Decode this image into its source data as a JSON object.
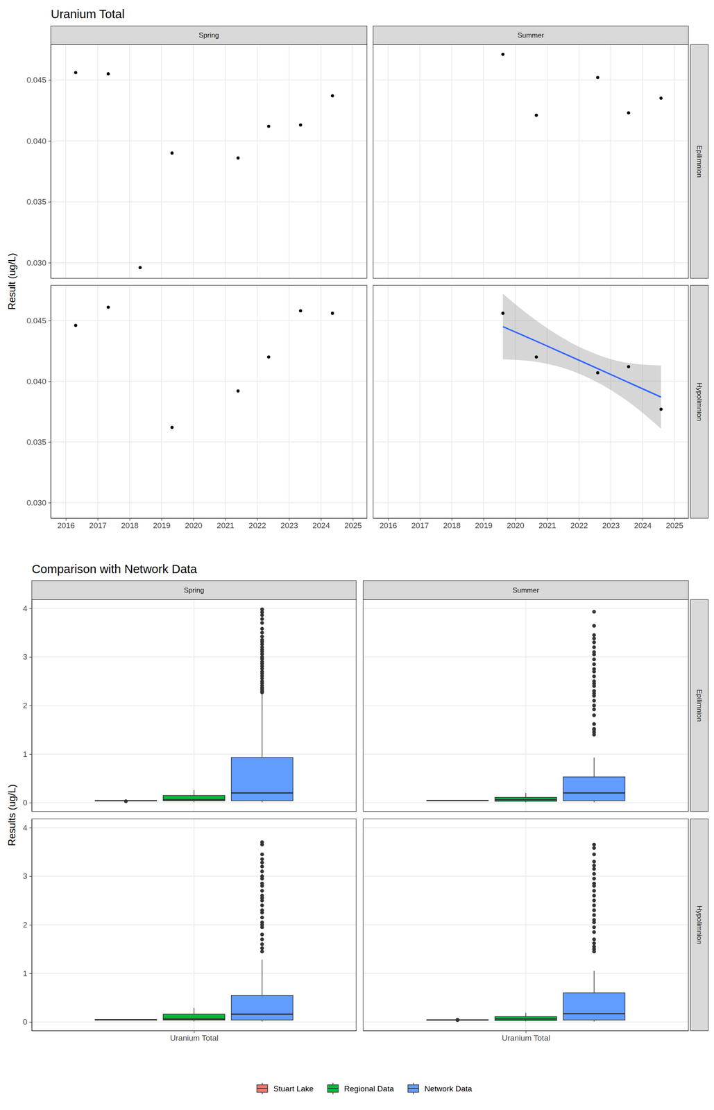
{
  "chart_data": [
    {
      "type": "scatter",
      "title": "Uranium Total",
      "y_label": "Result (ug/L)",
      "color": "#000000",
      "marker": "circle",
      "grid": true,
      "columns": [
        "Spring",
        "Summer"
      ],
      "xlim": [
        2015.53,
        2025.44
      ],
      "xticks": [
        2016,
        2017,
        2018,
        2019,
        2020,
        2021,
        2022,
        2023,
        2024,
        2025
      ],
      "ylim": [
        0.02872,
        0.0479
      ],
      "yticks": [
        {
          "value": 0.03,
          "label": "0.030"
        },
        {
          "value": 0.035,
          "label": "0.035"
        },
        {
          "value": 0.04,
          "label": "0.040"
        },
        {
          "value": 0.045,
          "label": "0.045"
        }
      ],
      "rows": [
        {
          "name": "Epilimnion",
          "panels": [
            {
              "x": [
                2016.31,
                2017.33,
                2018.33,
                2019.33,
                2021.4,
                2022.36,
                2023.36,
                2024.36
              ],
              "values": [
                0.0456,
                0.0455,
                0.0296,
                0.039,
                0.0386,
                0.0412,
                0.0413,
                0.0437
              ]
            },
            {
              "x": [
                2019.61,
                2020.66,
                2022.59,
                2023.56,
                2024.58
              ],
              "values": [
                0.0471,
                0.0421,
                0.0452,
                0.0423,
                0.0435
              ]
            }
          ]
        },
        {
          "name": "Hypolimnion",
          "panels": [
            {
              "x": [
                2016.31,
                2017.33,
                2019.33,
                2021.4,
                2022.36,
                2023.36,
                2024.36
              ],
              "values": [
                0.0446,
                0.0461,
                0.0362,
                0.0392,
                0.042,
                0.0458,
                0.0456
              ]
            },
            {
              "x": [
                2019.61,
                2020.66,
                2022.59,
                2023.56,
                2024.58
              ],
              "values": [
                0.0456,
                0.042,
                0.0407,
                0.0412,
                0.0377
              ],
              "trend": {
                "color": "#3366FF",
                "x": [
                  2019.61,
                  2020.66,
                  2022.2,
                  2023.56,
                  2024.58
                ],
                "values": [
                  0.0445,
                  0.0433,
                  0.0415,
                  0.0399,
                  0.0387
                ],
                "lower": [
                  0.0418,
                  0.0416,
                  0.0404,
                  0.0383,
                  0.0361
                ],
                "upper": [
                  0.0472,
                  0.045,
                  0.0426,
                  0.0415,
                  0.0413
                ]
              }
            }
          ]
        }
      ]
    },
    {
      "type": "box",
      "title": "Comparison with Network Data",
      "y_label": "Results (ug/L)",
      "grid": true,
      "legend": "bottom",
      "categories": [
        "Uranium Total"
      ],
      "columns": [
        "Spring",
        "Summer"
      ],
      "ylim": [
        -0.18,
        4.18
      ],
      "yticks": [
        0,
        1,
        2,
        3,
        4
      ],
      "series": [
        {
          "name": "Stuart Lake",
          "color": "#F8766D"
        },
        {
          "name": "Regional Data",
          "color": "#00BA38"
        },
        {
          "name": "Network Data",
          "color": "#619CFF"
        }
      ],
      "rows": [
        {
          "name": "Epilimnion",
          "panels": [
            {
              "boxes": [
                {
                  "min": 0.0386,
                  "q1": 0.0389,
                  "median": 0.04125,
                  "q3": 0.04415,
                  "max": 0.0456,
                  "outliers": [
                    0.0296
                  ]
                },
                {
                  "min": 0.01,
                  "q1": 0.04,
                  "median": 0.06,
                  "q3": 0.15,
                  "max": 0.26,
                  "outliers": []
                },
                {
                  "min": 0.01,
                  "q1": 0.04,
                  "median": 0.2,
                  "q3": 0.93,
                  "max": 2.25,
                  "outliers": [
                    2.27,
                    2.3,
                    2.34,
                    2.37,
                    2.41,
                    2.46,
                    2.5,
                    2.56,
                    2.61,
                    2.66,
                    2.7,
                    2.76,
                    2.81,
                    2.86,
                    2.9,
                    2.96,
                    3.0,
                    3.06,
                    3.11,
                    3.15,
                    3.2,
                    3.26,
                    3.31,
                    3.35,
                    3.42,
                    3.5,
                    3.58,
                    3.7,
                    3.78,
                    3.86,
                    3.92,
                    3.98
                  ]
                }
              ]
            },
            {
              "boxes": [
                {
                  "min": 0.0421,
                  "q1": 0.0423,
                  "median": 0.0435,
                  "q3": 0.0452,
                  "max": 0.0471,
                  "outliers": []
                },
                {
                  "min": 0.01,
                  "q1": 0.03,
                  "median": 0.06,
                  "q3": 0.11,
                  "max": 0.2,
                  "outliers": []
                },
                {
                  "min": 0.01,
                  "q1": 0.04,
                  "median": 0.2,
                  "q3": 0.53,
                  "max": 0.93,
                  "outliers": [
                    1.4,
                    1.45,
                    1.5,
                    1.52,
                    1.62,
                    1.8,
                    1.92,
                    2.0,
                    2.1,
                    2.2,
                    2.25,
                    2.3,
                    2.4,
                    2.45,
                    2.5,
                    2.6,
                    2.7,
                    2.75,
                    2.85,
                    2.95,
                    3.05,
                    3.1,
                    3.2,
                    3.3,
                    3.38,
                    3.45,
                    3.64,
                    3.93
                  ]
                }
              ]
            }
          ]
        },
        {
          "name": "Hypolimnion",
          "panels": [
            {
              "boxes": [
                {
                  "min": 0.0362,
                  "q1": 0.0406,
                  "median": 0.0446,
                  "q3": 0.0457,
                  "max": 0.0461,
                  "outliers": []
                },
                {
                  "min": 0.01,
                  "q1": 0.04,
                  "median": 0.06,
                  "q3": 0.16,
                  "max": 0.29,
                  "outliers": []
                },
                {
                  "min": 0.01,
                  "q1": 0.04,
                  "median": 0.16,
                  "q3": 0.55,
                  "max": 1.28,
                  "outliers": [
                    1.45,
                    1.52,
                    1.6,
                    1.7,
                    1.8,
                    1.95,
                    2.0,
                    2.05,
                    2.15,
                    2.25,
                    2.3,
                    2.4,
                    2.5,
                    2.55,
                    2.6,
                    2.7,
                    2.8,
                    2.85,
                    2.95,
                    3.0,
                    3.1,
                    3.2,
                    3.28,
                    3.35,
                    3.45,
                    3.65,
                    3.7
                  ]
                }
              ]
            },
            {
              "boxes": [
                {
                  "min": 0.0407,
                  "q1": 0.0407,
                  "median": 0.0412,
                  "q3": 0.042,
                  "max": 0.042,
                  "outliers": [
                    0.0377,
                    0.0456
                  ]
                },
                {
                  "min": 0.01,
                  "q1": 0.03,
                  "median": 0.06,
                  "q3": 0.11,
                  "max": 0.19,
                  "outliers": []
                },
                {
                  "min": 0.01,
                  "q1": 0.04,
                  "median": 0.17,
                  "q3": 0.6,
                  "max": 1.05,
                  "outliers": [
                    1.45,
                    1.5,
                    1.55,
                    1.62,
                    1.7,
                    1.85,
                    1.95,
                    2.05,
                    2.1,
                    2.2,
                    2.3,
                    2.4,
                    2.5,
                    2.6,
                    2.7,
                    2.8,
                    2.85,
                    2.95,
                    3.05,
                    3.15,
                    3.22,
                    3.3,
                    3.45,
                    3.58,
                    3.65
                  ]
                }
              ]
            }
          ]
        }
      ]
    }
  ]
}
